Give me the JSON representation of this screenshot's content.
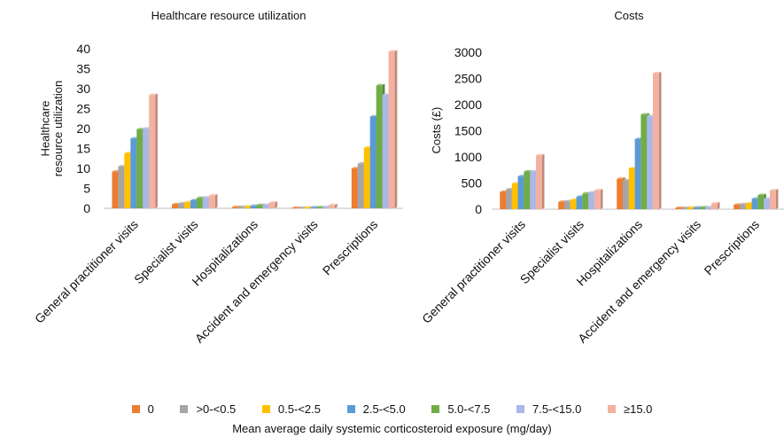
{
  "chart_data": [
    {
      "type": "bar",
      "title": "Healthcare resource utilization",
      "ylabel": "Healthcare resource utilization",
      "ylim": [
        0,
        40
      ],
      "yticks": [
        0,
        5,
        10,
        15,
        20,
        25,
        30,
        35,
        40
      ],
      "categories": [
        "General practitioner visits",
        "Specialist visits",
        "Hospitalizations",
        "Accident and emergency visits",
        "Prescriptions"
      ],
      "series": [
        {
          "name": "0",
          "values": [
            9.2,
            1.0,
            0.3,
            0.1,
            10.0
          ]
        },
        {
          "name": ">0-<0.5",
          "values": [
            10.5,
            1.2,
            0.35,
            0.1,
            11.2
          ]
        },
        {
          "name": "0.5-<2.5",
          "values": [
            13.8,
            1.5,
            0.4,
            0.15,
            15.2
          ]
        },
        {
          "name": "2.5-<5.0",
          "values": [
            17.5,
            2.0,
            0.6,
            0.2,
            23.0
          ]
        },
        {
          "name": "5.0-<7.5",
          "values": [
            19.8,
            2.6,
            0.8,
            0.25,
            30.8
          ]
        },
        {
          "name": "7.5-<15.0",
          "values": [
            20.0,
            2.7,
            0.85,
            0.3,
            28.4
          ]
        },
        {
          "name": "≥15.0",
          "values": [
            28.4,
            3.2,
            1.4,
            0.8,
            39.3
          ]
        }
      ]
    },
    {
      "type": "bar",
      "title": "Costs",
      "ylabel": "Costs (£)",
      "ylim": [
        0,
        3000
      ],
      "yticks": [
        0,
        500,
        1000,
        1500,
        2000,
        2500,
        3000
      ],
      "categories": [
        "General practitioner visits",
        "Specialist visits",
        "Hospitalizations",
        "Accident and emergency visits",
        "Prescriptions"
      ],
      "series": [
        {
          "name": "0",
          "values": [
            330,
            140,
            580,
            25,
            85
          ]
        },
        {
          "name": ">0-<0.5",
          "values": [
            380,
            150,
            550,
            25,
            95
          ]
        },
        {
          "name": "0.5-<2.5",
          "values": [
            490,
            180,
            780,
            30,
            110
          ]
        },
        {
          "name": "2.5-<5.0",
          "values": [
            630,
            240,
            1340,
            30,
            200
          ]
        },
        {
          "name": "5.0-<7.5",
          "values": [
            720,
            300,
            1810,
            35,
            270
          ]
        },
        {
          "name": "7.5-<15.0",
          "values": [
            720,
            320,
            1780,
            35,
            200
          ]
        },
        {
          "name": "≥15.0",
          "values": [
            1030,
            360,
            2600,
            110,
            360
          ]
        }
      ]
    }
  ],
  "colors": [
    "#ED7D31",
    "#A5A5A5",
    "#FFC000",
    "#5B9BD5",
    "#70AD47",
    "#A9B8E6",
    "#F4B1A0"
  ],
  "legend": {
    "items": [
      "0",
      ">0-<0.5",
      "0.5-<2.5",
      "2.5-<5.0",
      "5.0-<7.5",
      "7.5-<15.0",
      "≥15.0"
    ]
  },
  "footer": {
    "xlabel": "Mean average daily systemic corticosteroid exposure (mg/day)"
  }
}
